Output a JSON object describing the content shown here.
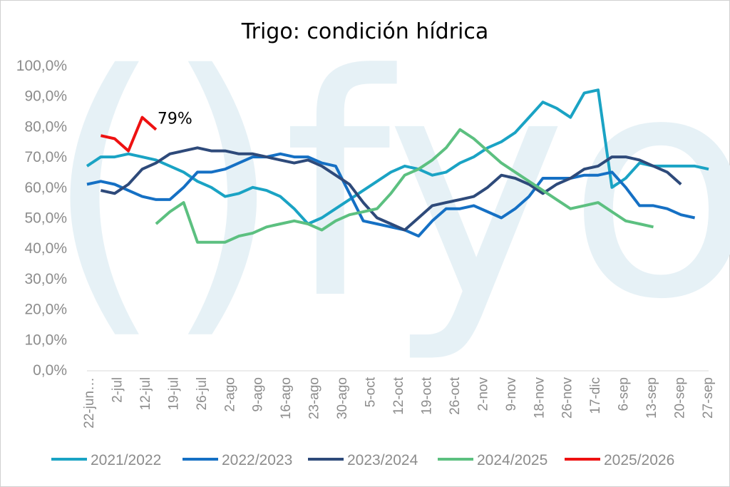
{
  "chart_data": {
    "type": "line",
    "title": "Trigo: condición hídrica",
    "categories": [
      "22-jun…",
      "2-jul",
      "12-jul",
      "19-jul",
      "26-jul",
      "2-ago",
      "9-ago",
      "16-ago",
      "23-ago",
      "30-ago",
      "5-oct",
      "12-oct",
      "19-oct",
      "26-oct",
      "2-nov",
      "9-nov",
      "18-nov",
      "26-nov",
      "17-dic",
      "6-sep",
      "13-sep",
      "20-sep",
      "27-sep"
    ],
    "x": [
      0,
      1,
      2,
      3,
      4,
      5,
      6,
      7,
      8,
      9,
      10,
      11,
      12,
      13,
      14,
      15,
      16,
      17,
      18,
      19,
      20,
      21,
      22,
      23,
      24,
      25,
      26,
      27,
      28,
      29,
      30,
      31,
      32,
      33,
      34,
      35,
      36,
      37,
      38,
      39,
      40,
      41,
      42,
      43,
      44,
      45
    ],
    "ylim": [
      0,
      100
    ],
    "yticks": [
      "0,0%",
      "10,0%",
      "20,0%",
      "30,0%",
      "40,0%",
      "50,0%",
      "60,0%",
      "70,0%",
      "80,0%",
      "90,0%",
      "100,0%"
    ],
    "grid": false,
    "legend_position": "bottom",
    "watermark": "()fyo",
    "annotation": {
      "text": "79%",
      "series": "2025/2026"
    },
    "series": [
      {
        "name": "2021/2022",
        "color": "#1aa3c4",
        "values": [
          67,
          70,
          70,
          71,
          70,
          69,
          67,
          65,
          62,
          60,
          57,
          58,
          60,
          59,
          57,
          53,
          48,
          50,
          53,
          56,
          59,
          62,
          65,
          67,
          66,
          64,
          65,
          68,
          70,
          73,
          75,
          78,
          83,
          88,
          86,
          83,
          91,
          92,
          60,
          63,
          68,
          67,
          67,
          67,
          67,
          66
        ]
      },
      {
        "name": "2022/2023",
        "color": "#1570c4",
        "values": [
          61,
          62,
          61,
          59,
          57,
          56,
          56,
          60,
          65,
          65,
          66,
          68,
          70,
          70,
          71,
          70,
          70,
          68,
          67,
          58,
          49,
          48,
          47,
          46,
          44,
          49,
          53,
          53,
          54,
          52,
          50,
          53,
          57,
          63,
          63,
          63,
          64,
          64,
          65,
          60,
          54,
          54,
          53,
          51,
          50,
          null
        ]
      },
      {
        "name": "2023/2024",
        "color": "#2e4a7a",
        "values": [
          null,
          59,
          58,
          61,
          66,
          68,
          71,
          72,
          73,
          72,
          72,
          71,
          71,
          70,
          69,
          68,
          69,
          67,
          64,
          61,
          55,
          50,
          48,
          46,
          50,
          54,
          55,
          56,
          57,
          60,
          64,
          63,
          61,
          58,
          61,
          63,
          66,
          67,
          70,
          70,
          69,
          67,
          65,
          61,
          null,
          null
        ]
      },
      {
        "name": "2024/2025",
        "color": "#5cc080",
        "values": [
          null,
          null,
          null,
          null,
          null,
          48,
          52,
          55,
          42,
          42,
          42,
          44,
          45,
          47,
          48,
          49,
          48,
          46,
          49,
          51,
          52,
          53,
          58,
          64,
          66,
          69,
          73,
          79,
          76,
          72,
          68,
          65,
          62,
          59,
          56,
          53,
          54,
          55,
          52,
          49,
          48,
          47,
          null,
          null,
          null,
          null
        ]
      },
      {
        "name": "2025/2026",
        "color": "#ee1111",
        "values": [
          null,
          77,
          76,
          72,
          83,
          79,
          null,
          null,
          null,
          null,
          null,
          null,
          null,
          null,
          null,
          null,
          null,
          null,
          null,
          null,
          null,
          null,
          null,
          null,
          null,
          null,
          null,
          null,
          null,
          null,
          null,
          null,
          null,
          null,
          null,
          null,
          null,
          null,
          null,
          null,
          null,
          null,
          null,
          null,
          null,
          null
        ]
      }
    ]
  }
}
